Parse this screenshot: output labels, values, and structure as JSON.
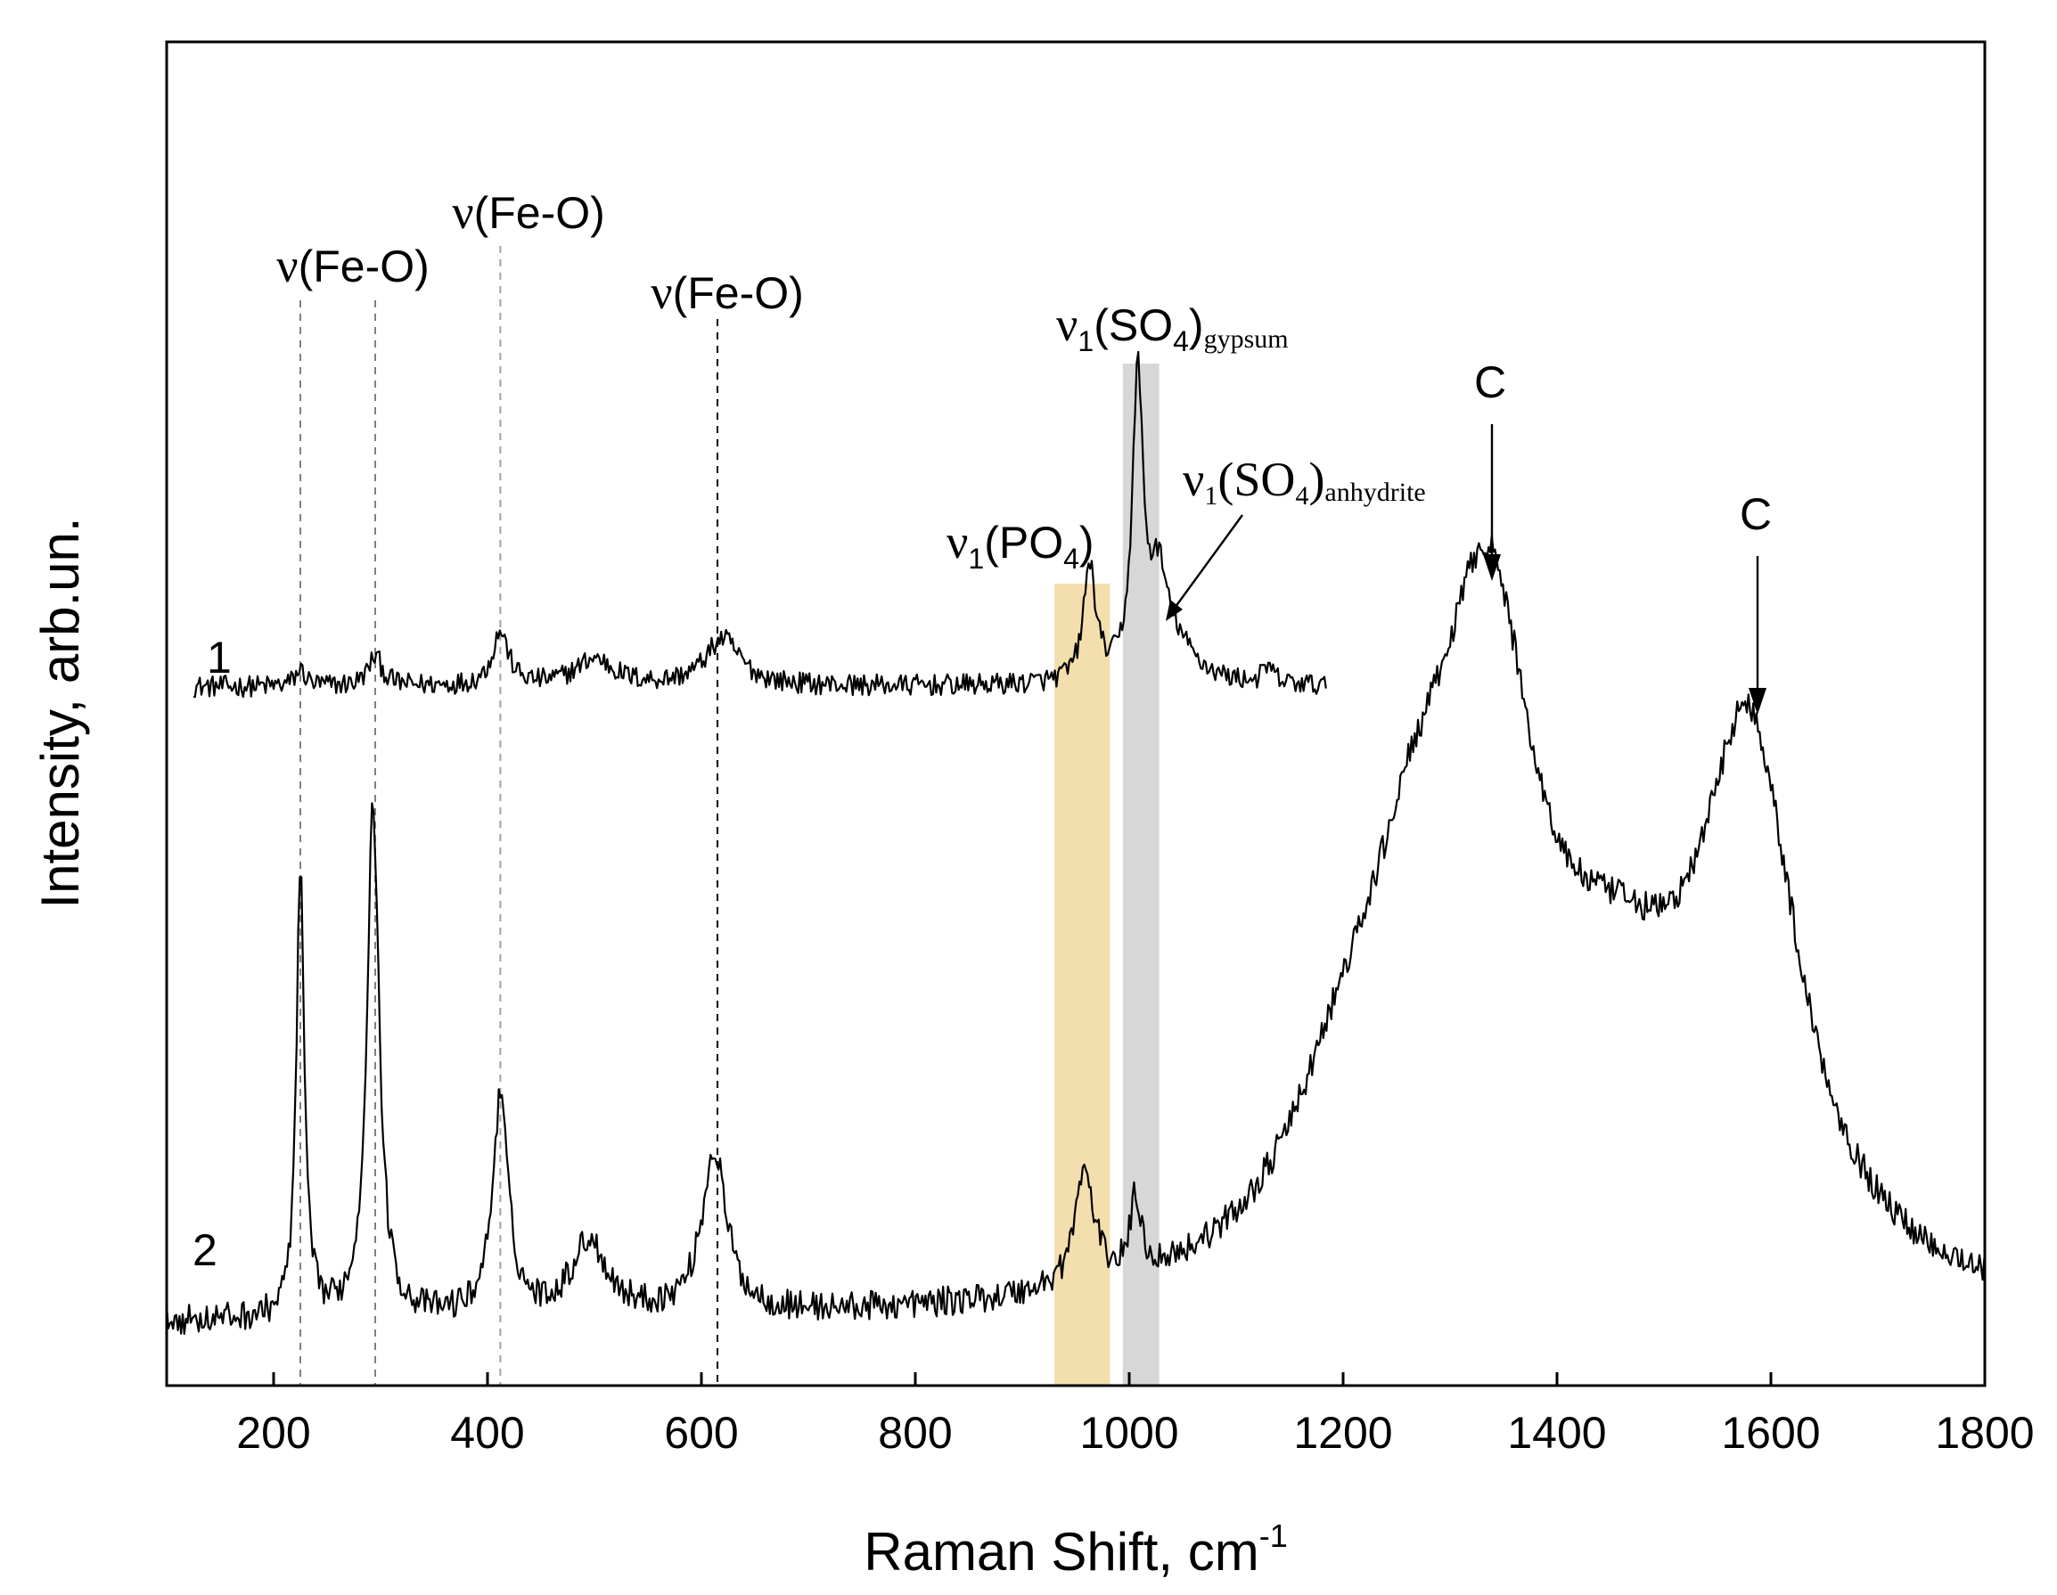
{
  "chart_data": {
    "type": "line",
    "title": "",
    "xlabel": "Raman Shift, cm",
    "xlabel_superscript": "-1",
    "ylabel": "Intensity, arb.un.",
    "xlim": [
      100,
      1800
    ],
    "ylim": [
      0,
      1
    ],
    "x_ticks": [
      200,
      400,
      600,
      800,
      1000,
      1200,
      1400,
      1600,
      1800
    ],
    "series": [
      {
        "name": "1",
        "label": "1",
        "x_range": [
          125,
          1185
        ],
        "baseline": 0.52,
        "noise": 0.008,
        "peaks": [
          {
            "x": 225,
            "h": 0.012,
            "w": 6
          },
          {
            "x": 295,
            "h": 0.022,
            "w": 8
          },
          {
            "x": 412,
            "h": 0.04,
            "w": 9
          },
          {
            "x": 500,
            "h": 0.02,
            "w": 22
          },
          {
            "x": 620,
            "h": 0.035,
            "w": 20
          },
          {
            "x": 963,
            "h": 0.085,
            "w": 7
          },
          {
            "x": 1008,
            "h": 0.22,
            "w": 6
          },
          {
            "x": 1027,
            "h": 0.06,
            "w": 9
          },
          {
            "x": 1040,
            "h": 0.03,
            "w": 25
          },
          {
            "x": 1130,
            "h": 0.012,
            "w": 6
          }
        ]
      },
      {
        "name": "2",
        "label": "2",
        "x_range": [
          100,
          1800
        ],
        "baseline": 0.045,
        "noise": 0.011,
        "peaks": [
          {
            "x": 225,
            "h": 0.33,
            "w": 4.5
          },
          {
            "x": 293,
            "h": 0.38,
            "w": 7
          },
          {
            "x": 412,
            "h": 0.16,
            "w": 9
          },
          {
            "x": 495,
            "h": 0.055,
            "w": 20
          },
          {
            "x": 612,
            "h": 0.12,
            "w": 14
          },
          {
            "x": 958,
            "h": 0.085,
            "w": 11
          },
          {
            "x": 1006,
            "h": 0.055,
            "w": 6
          },
          {
            "x": 1200,
            "h": 0.1,
            "w": 65
          },
          {
            "x": 1265,
            "h": 0.18,
            "w": 55
          },
          {
            "x": 1335,
            "h": 0.41,
            "w": 55
          },
          {
            "x": 1455,
            "h": 0.17,
            "w": 95
          },
          {
            "x": 1580,
            "h": 0.37,
            "w": 55
          }
        ]
      }
    ],
    "highlight_bands": [
      {
        "name": "v1(PO4)",
        "x_range": [
          930,
          982
        ],
        "color": "#f3dfae"
      },
      {
        "name": "v1(SO4)gypsum",
        "x_range": [
          994,
          1028
        ],
        "color": "#d7d7d7"
      }
    ],
    "reference_lines": [
      {
        "x": 225,
        "color": "#808080"
      },
      {
        "x": 295,
        "color": "#808080"
      },
      {
        "x": 412,
        "color": "#a0a0a0"
      },
      {
        "x": 615,
        "color": "#000000"
      }
    ],
    "annotations": {
      "fe_o_1": {
        "prefix": "ν",
        "text": "(Fe-O)",
        "x": 300
      },
      "fe_o_2": {
        "prefix": "ν",
        "text": "(Fe-O)",
        "x": 415
      },
      "fe_o_3": {
        "prefix": "ν",
        "text": "(Fe-O)",
        "x": 615
      },
      "po4": {
        "prefix": "ν",
        "sub1": "1",
        "main": "(PO",
        "sub2": "4",
        "close": ")"
      },
      "gypsum": {
        "prefix": "ν",
        "sub1": "1",
        "main": "(SO",
        "sub2": "4",
        "close": ")",
        "subscript": "gypsum"
      },
      "anhydrite": {
        "prefix": "ν",
        "sub1": "1",
        "main": "(SO",
        "sub2": "4",
        "close": ")",
        "subscript": "anhydrite"
      },
      "c1": {
        "text": "C",
        "x": 1335
      },
      "c2": {
        "text": "C",
        "x": 1580
      }
    }
  }
}
